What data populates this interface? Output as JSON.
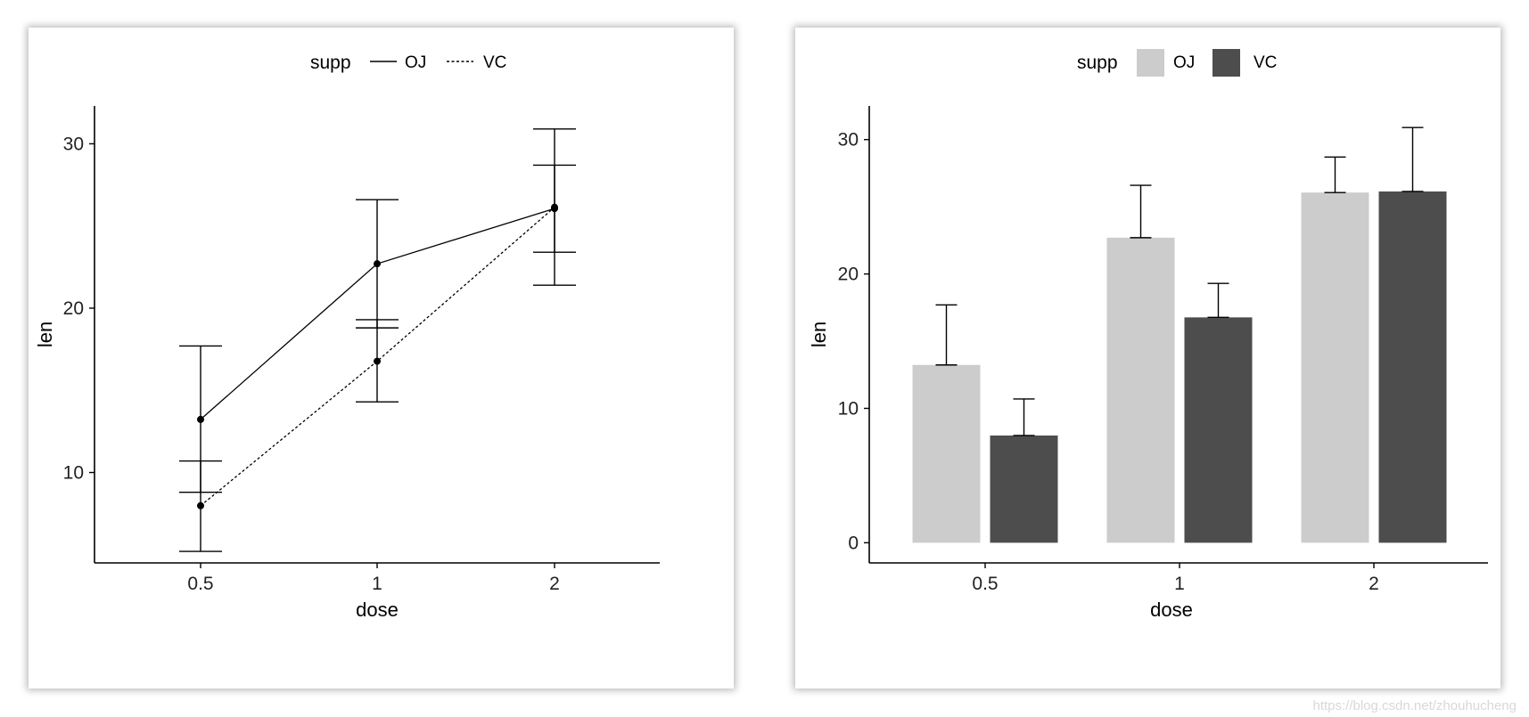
{
  "watermark": "https://blog.csdn.net/zhouhucheng",
  "chart_data": [
    {
      "type": "line",
      "xlabel": "dose",
      "ylabel": "len",
      "categories": [
        "0.5",
        "1",
        "2"
      ],
      "yticks": [
        10,
        20,
        30
      ],
      "ylim": [
        4.5,
        32.3
      ],
      "grid": false,
      "legend": {
        "title": "supp",
        "position": "top"
      },
      "series": [
        {
          "name": "OJ",
          "linestyle": "solid",
          "values": [
            13.23,
            22.7,
            26.06
          ],
          "err_low": [
            8.8,
            18.8,
            23.4
          ],
          "err_high": [
            17.7,
            26.6,
            28.7
          ]
        },
        {
          "name": "VC",
          "linestyle": "dotted",
          "values": [
            7.98,
            16.77,
            26.14
          ],
          "err_low": [
            5.2,
            14.3,
            21.4
          ],
          "err_high": [
            10.7,
            19.3,
            30.9
          ]
        }
      ]
    },
    {
      "type": "bar",
      "xlabel": "dose",
      "ylabel": "len",
      "categories": [
        "0.5",
        "1",
        "2"
      ],
      "yticks": [
        0,
        10,
        20,
        30
      ],
      "ylim": [
        -1.5,
        32.5
      ],
      "grid": false,
      "legend": {
        "title": "supp",
        "position": "top"
      },
      "series": [
        {
          "name": "OJ",
          "color": "#cccccc",
          "values": [
            13.23,
            22.7,
            26.06
          ],
          "err_high": [
            17.7,
            26.6,
            28.7
          ]
        },
        {
          "name": "VC",
          "color": "#4d4d4d",
          "values": [
            7.98,
            16.77,
            26.14
          ],
          "err_high": [
            10.7,
            19.3,
            30.9
          ]
        }
      ]
    }
  ]
}
